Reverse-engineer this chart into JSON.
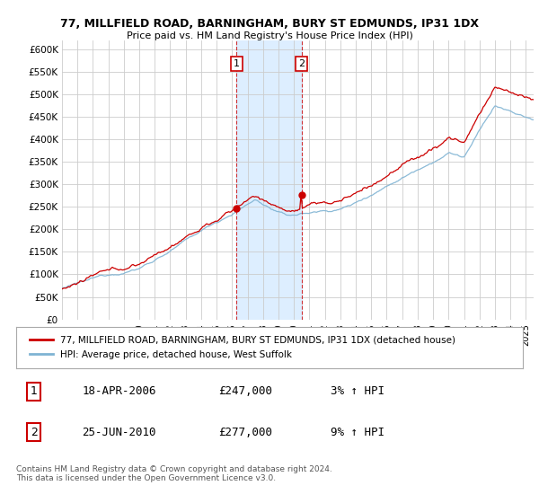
{
  "title": "77, MILLFIELD ROAD, BARNINGHAM, BURY ST EDMUNDS, IP31 1DX",
  "subtitle": "Price paid vs. HM Land Registry's House Price Index (HPI)",
  "legend_line1": "77, MILLFIELD ROAD, BARNINGHAM, BURY ST EDMUNDS, IP31 1DX (detached house)",
  "legend_line2": "HPI: Average price, detached house, West Suffolk",
  "annotation1_label": "1",
  "annotation1_date": "18-APR-2006",
  "annotation1_price": "£247,000",
  "annotation1_hpi": "3% ↑ HPI",
  "annotation1_year": 2006.29,
  "annotation1_value": 247000,
  "annotation2_label": "2",
  "annotation2_date": "25-JUN-2010",
  "annotation2_price": "£277,000",
  "annotation2_hpi": "9% ↑ HPI",
  "annotation2_year": 2010.49,
  "annotation2_value": 277000,
  "footer": "Contains HM Land Registry data © Crown copyright and database right 2024.\nThis data is licensed under the Open Government Licence v3.0.",
  "price_color": "#cc0000",
  "hpi_color": "#7fb3d3",
  "highlight_color": "#ddeeff",
  "background_color": "#ffffff",
  "grid_color": "#cccccc",
  "ylim": [
    0,
    620000
  ],
  "yticks": [
    0,
    50000,
    100000,
    150000,
    200000,
    250000,
    300000,
    350000,
    400000,
    450000,
    500000,
    550000,
    600000
  ],
  "xmin": 1995,
  "xmax": 2025.5
}
